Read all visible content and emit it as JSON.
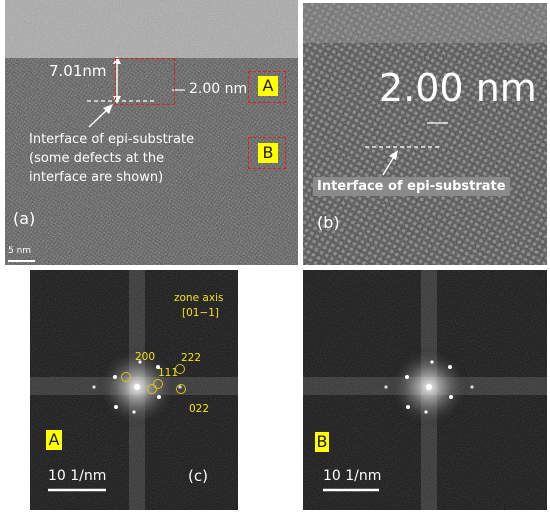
{
  "figure": {
    "panel_a": {
      "thickness_label": "7.01nm",
      "lattice_label": "2.00 nm",
      "region_a": "A",
      "region_b": "B",
      "interface_line1": "Interface of epi-substrate",
      "interface_line2": "(some defects at the",
      "interface_line3": "interface are shown)",
      "panel_letter": "(a)",
      "scale_bar": "5 nm"
    },
    "panel_b": {
      "lattice_label": "2.00 nm",
      "interface_label": "Interface of epi-substrate",
      "panel_letter": "(b)"
    },
    "panel_c_a": {
      "zone_axis_line1": "zone axis",
      "zone_axis_line2": "[01−1]",
      "spot_200": "200",
      "spot_222": "222",
      "spot_111": "111",
      "spot_022": "022",
      "region": "A",
      "scale_bar": "10 1/nm",
      "panel_letter": "(c)"
    },
    "panel_c_b": {
      "region": "B",
      "scale_bar": "10 1/nm"
    }
  }
}
